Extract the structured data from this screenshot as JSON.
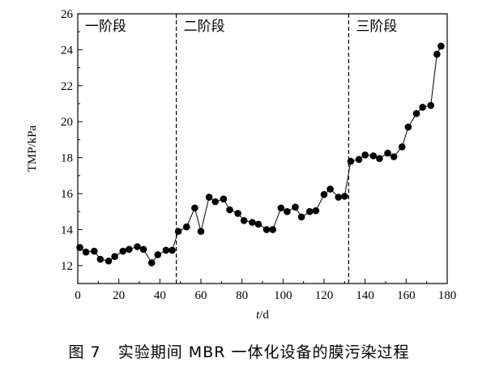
{
  "caption": "图 7   实验期间 MBR 一体化设备的膜污染过程",
  "chart_data": {
    "type": "scatter",
    "line_connected": true,
    "xlabel": "t/d",
    "ylabel": "TMP/kPa",
    "xlim": [
      0,
      180
    ],
    "ylim": [
      11,
      26
    ],
    "x_ticks": [
      0,
      20,
      40,
      60,
      80,
      100,
      120,
      140,
      160,
      180
    ],
    "y_ticks": [
      12,
      14,
      16,
      18,
      20,
      22,
      24,
      26
    ],
    "grid": false,
    "stage_dividers": [
      48,
      132
    ],
    "stage_labels": [
      {
        "text": "一阶段",
        "x_start": 0
      },
      {
        "text": "二阶段",
        "x_start": 48
      },
      {
        "text": "三阶段",
        "x_start": 132
      }
    ],
    "series": [
      {
        "x": [
          1,
          4,
          8,
          11,
          15,
          18,
          22,
          25,
          29,
          32,
          36,
          39,
          43,
          46,
          49,
          53,
          57,
          60,
          64,
          67,
          71,
          74,
          78,
          81,
          85,
          88,
          92,
          95,
          99,
          102,
          106,
          109,
          113,
          116,
          120,
          123,
          127,
          130,
          133,
          137,
          140,
          144,
          147,
          151,
          154,
          158,
          161,
          165,
          168,
          172,
          175,
          177
        ],
        "y": [
          13.0,
          12.75,
          12.8,
          12.35,
          12.25,
          12.5,
          12.8,
          12.9,
          13.05,
          12.9,
          12.15,
          12.6,
          12.85,
          12.85,
          13.9,
          14.15,
          15.2,
          13.9,
          15.8,
          15.55,
          15.7,
          15.1,
          14.9,
          14.5,
          14.4,
          14.3,
          14.0,
          14.0,
          15.2,
          15.0,
          15.25,
          14.7,
          15.0,
          15.05,
          15.95,
          16.25,
          15.8,
          15.85,
          17.8,
          17.9,
          18.15,
          18.1,
          17.95,
          18.25,
          18.05,
          18.6,
          19.7,
          20.45,
          20.8,
          20.9,
          23.75,
          24.2
        ]
      }
    ]
  }
}
